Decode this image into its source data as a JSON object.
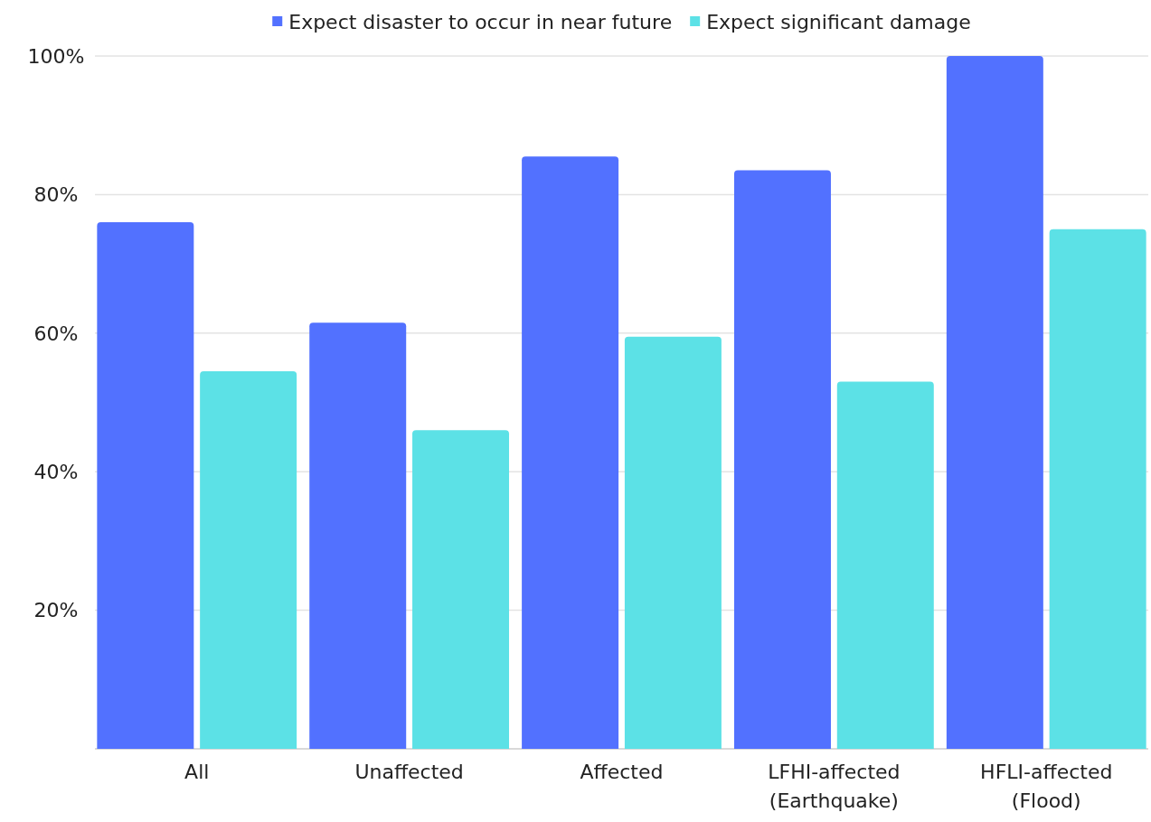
{
  "chart_data": {
    "type": "bar",
    "categories": [
      "All",
      "Unaffected",
      "Affected",
      "LFHI-affected\n(Earthquake)",
      "HFLI-affected\n(Flood)"
    ],
    "series": [
      {
        "name": "Expect disaster to occur in near future",
        "color": "#5271ff",
        "values": [
          76,
          61.5,
          85.5,
          83.5,
          100
        ]
      },
      {
        "name": "Expect significant damage",
        "color": "#5ce1e6",
        "values": [
          54.5,
          46,
          59.5,
          53,
          75
        ]
      }
    ],
    "ylim": [
      0,
      100
    ],
    "yticks": [
      {
        "value": 20,
        "label": "20%"
      },
      {
        "value": 40,
        "label": "40%"
      },
      {
        "value": 60,
        "label": "60%"
      },
      {
        "value": 80,
        "label": "80%"
      },
      {
        "value": 100,
        "label": "100%"
      }
    ],
    "grid": "y",
    "legend": "top"
  }
}
